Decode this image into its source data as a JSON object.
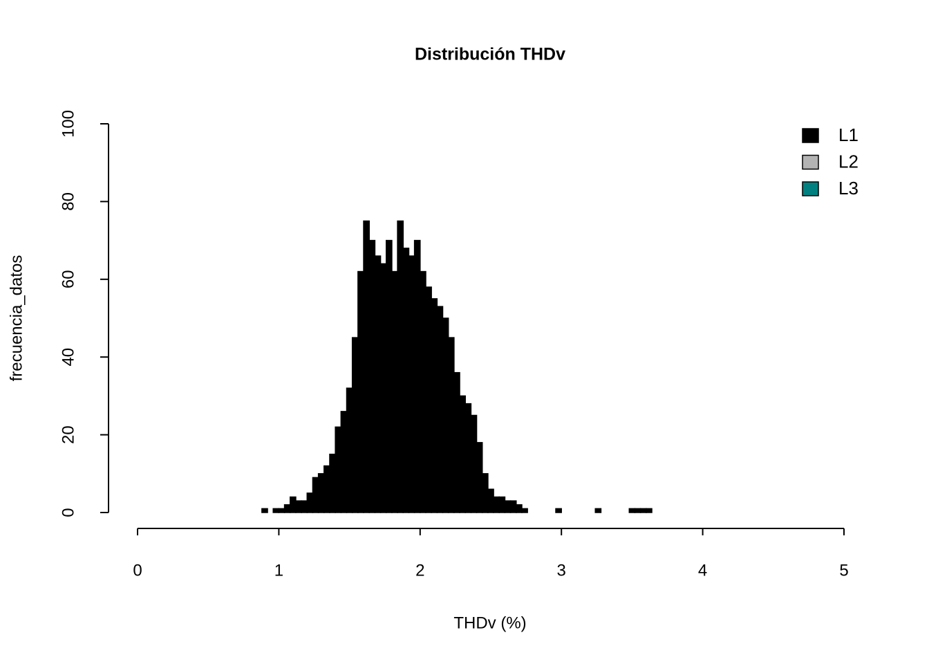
{
  "chart_data": {
    "type": "histogram",
    "title": "Distribución THDv",
    "x_label": "THDv (%)",
    "y_label": "frecuencia_datos",
    "bins": [
      0.88,
      0.92,
      0.96,
      1,
      1.04,
      1.08,
      1.12,
      1.16,
      1.2,
      1.24,
      1.28,
      1.32,
      1.36,
      1.4,
      1.44,
      1.48,
      1.52,
      1.56,
      1.6,
      1.64,
      1.68,
      1.72,
      1.76,
      1.8,
      1.84,
      1.88,
      1.92,
      1.96,
      2,
      2.04,
      2.08,
      2.12,
      2.16,
      2.2,
      2.24,
      2.28,
      2.32,
      2.36,
      2.4,
      2.44,
      2.48,
      2.52,
      2.56,
      2.6,
      2.64,
      2.68,
      2.72,
      2.76,
      2.8,
      2.84,
      2.88,
      2.92,
      2.96,
      3,
      3.04,
      3.08,
      3.12,
      3.16,
      3.2,
      3.24,
      3.28,
      3.32,
      3.36,
      3.4,
      3.44,
      3.48,
      3.52,
      3.56,
      3.6,
      3.64
    ],
    "values": [
      1,
      0,
      1,
      1,
      2,
      4,
      3,
      3,
      5,
      9,
      10,
      12,
      15,
      22,
      26,
      32,
      45,
      62,
      75,
      70,
      66,
      64,
      70,
      62,
      75,
      68,
      66,
      70,
      62,
      58,
      55,
      53,
      50,
      45,
      36,
      30,
      28,
      25,
      18,
      10,
      6,
      4,
      4,
      3,
      3,
      2,
      1,
      0,
      0,
      0,
      0,
      0,
      1,
      0,
      0,
      0,
      0,
      0,
      0,
      1,
      0,
      0,
      0,
      0,
      0,
      1,
      1,
      1,
      1
    ],
    "color": "#000000",
    "legend": [
      {
        "name": "L1",
        "color": "#000000"
      },
      {
        "name": "L2",
        "color": "#b3b3b3"
      },
      {
        "name": "L3",
        "color": "#008080"
      }
    ],
    "legend_position": "top-right",
    "xlim": [
      0,
      5
    ],
    "xticks": [
      0,
      1,
      2,
      3,
      4,
      5
    ],
    "ylim": [
      0,
      100
    ],
    "yticks": [
      0,
      20,
      40,
      60,
      80,
      100
    ]
  }
}
